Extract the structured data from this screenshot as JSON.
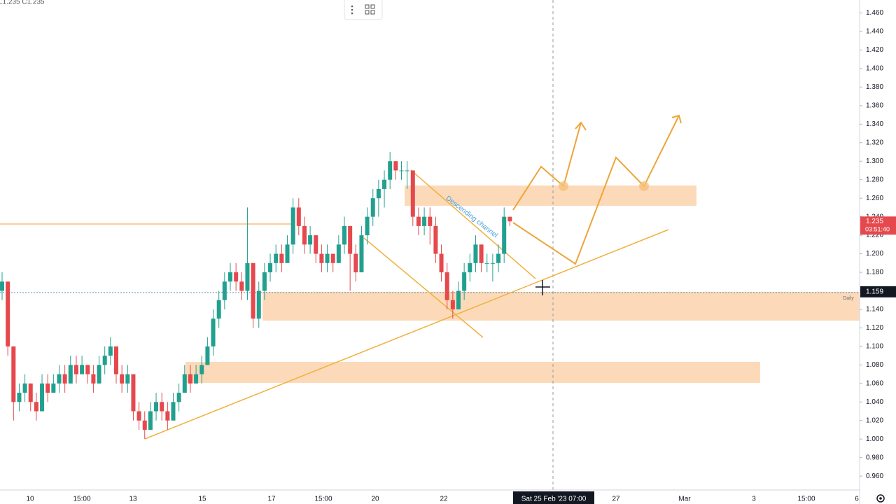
{
  "chart_data": {
    "type": "candlestick",
    "ohlc_label": "L1.235 C1.235",
    "ylim": [
      0.945,
      1.474
    ],
    "yticks": [
      {
        "value": 1.46,
        "label": "1.460"
      },
      {
        "value": 1.44,
        "label": "1.440"
      },
      {
        "value": 1.42,
        "label": "1.420"
      },
      {
        "value": 1.4,
        "label": "1.400"
      },
      {
        "value": 1.38,
        "label": "1.380"
      },
      {
        "value": 1.36,
        "label": "1.360"
      },
      {
        "value": 1.34,
        "label": "1.340"
      },
      {
        "value": 1.32,
        "label": "1.320"
      },
      {
        "value": 1.3,
        "label": "1.300"
      },
      {
        "value": 1.28,
        "label": "1.280"
      },
      {
        "value": 1.26,
        "label": "1.260"
      },
      {
        "value": 1.24,
        "label": "1.240"
      },
      {
        "value": 1.22,
        "label": "1.220"
      },
      {
        "value": 1.2,
        "label": "1.200"
      },
      {
        "value": 1.18,
        "label": "1.180"
      },
      {
        "value": 1.16,
        "label": "1.160"
      },
      {
        "value": 1.14,
        "label": "1.140"
      },
      {
        "value": 1.12,
        "label": "1.120"
      },
      {
        "value": 1.1,
        "label": "1.100"
      },
      {
        "value": 1.08,
        "label": "1.080"
      },
      {
        "value": 1.06,
        "label": "1.060"
      },
      {
        "value": 1.04,
        "label": "1.040"
      },
      {
        "value": 1.02,
        "label": "1.020"
      },
      {
        "value": 1,
        "label": "1.000"
      },
      {
        "value": 0.98,
        "label": "0.980"
      },
      {
        "value": 0.96,
        "label": "0.960"
      }
    ],
    "x_labels": [
      "10",
      "15:00",
      "13",
      "15",
      "17",
      "15:00",
      "20",
      "22",
      "27",
      "Mar",
      "3",
      "15:00",
      "6"
    ],
    "crosshair_label": "Sat 25 Feb '23  07:00",
    "last_price": {
      "value": 1.235,
      "label": "1.235",
      "countdown": "03:51:40"
    },
    "crosshair_price": {
      "value": 1.159,
      "label": "1.159"
    },
    "interval": "Daily",
    "annotation": "Descending channel",
    "up_color": "#22a08f",
    "down_color": "#e5484d",
    "candles": [
      [
        1.16,
        1.18,
        1.15,
        1.17
      ],
      [
        1.17,
        1.17,
        1.09,
        1.1
      ],
      [
        1.1,
        1.1,
        1.02,
        1.04
      ],
      [
        1.04,
        1.06,
        1.03,
        1.05
      ],
      [
        1.05,
        1.07,
        1.04,
        1.06
      ],
      [
        1.06,
        1.06,
        1.03,
        1.04
      ],
      [
        1.04,
        1.05,
        1.02,
        1.03
      ],
      [
        1.03,
        1.07,
        1.03,
        1.06
      ],
      [
        1.06,
        1.07,
        1.04,
        1.05
      ],
      [
        1.05,
        1.07,
        1.05,
        1.06
      ],
      [
        1.06,
        1.08,
        1.05,
        1.07
      ],
      [
        1.07,
        1.08,
        1.05,
        1.06
      ],
      [
        1.06,
        1.09,
        1.06,
        1.08
      ],
      [
        1.08,
        1.09,
        1.06,
        1.07
      ],
      [
        1.07,
        1.09,
        1.07,
        1.08
      ],
      [
        1.08,
        1.08,
        1.06,
        1.07
      ],
      [
        1.07,
        1.08,
        1.05,
        1.06
      ],
      [
        1.06,
        1.09,
        1.06,
        1.08
      ],
      [
        1.08,
        1.1,
        1.07,
        1.09
      ],
      [
        1.09,
        1.11,
        1.08,
        1.1
      ],
      [
        1.1,
        1.1,
        1.06,
        1.07
      ],
      [
        1.07,
        1.08,
        1.05,
        1.06
      ],
      [
        1.06,
        1.08,
        1.05,
        1.07
      ],
      [
        1.07,
        1.07,
        1.02,
        1.03
      ],
      [
        1.03,
        1.04,
        1.01,
        1.02
      ],
      [
        1.02,
        1.03,
        1.0,
        1.01
      ],
      [
        1.01,
        1.04,
        1.01,
        1.03
      ],
      [
        1.03,
        1.05,
        1.02,
        1.04
      ],
      [
        1.04,
        1.05,
        1.02,
        1.03
      ],
      [
        1.03,
        1.04,
        1.01,
        1.02
      ],
      [
        1.02,
        1.05,
        1.02,
        1.04
      ],
      [
        1.04,
        1.06,
        1.03,
        1.05
      ],
      [
        1.05,
        1.08,
        1.05,
        1.07
      ],
      [
        1.07,
        1.08,
        1.05,
        1.06
      ],
      [
        1.06,
        1.08,
        1.06,
        1.07
      ],
      [
        1.07,
        1.09,
        1.06,
        1.08
      ],
      [
        1.08,
        1.11,
        1.08,
        1.1
      ],
      [
        1.1,
        1.14,
        1.09,
        1.13
      ],
      [
        1.13,
        1.16,
        1.12,
        1.15
      ],
      [
        1.15,
        1.18,
        1.14,
        1.17
      ],
      [
        1.17,
        1.19,
        1.16,
        1.18
      ],
      [
        1.18,
        1.19,
        1.16,
        1.17
      ],
      [
        1.17,
        1.18,
        1.15,
        1.16
      ],
      [
        1.16,
        1.25,
        1.15,
        1.19
      ],
      [
        1.19,
        1.19,
        1.12,
        1.13
      ],
      [
        1.13,
        1.17,
        1.12,
        1.16
      ],
      [
        1.16,
        1.19,
        1.15,
        1.18
      ],
      [
        1.18,
        1.2,
        1.17,
        1.19
      ],
      [
        1.19,
        1.21,
        1.18,
        1.2
      ],
      [
        1.2,
        1.21,
        1.18,
        1.19
      ],
      [
        1.19,
        1.22,
        1.19,
        1.21
      ],
      [
        1.21,
        1.26,
        1.2,
        1.25
      ],
      [
        1.25,
        1.26,
        1.22,
        1.23
      ],
      [
        1.23,
        1.24,
        1.2,
        1.21
      ],
      [
        1.21,
        1.23,
        1.2,
        1.22
      ],
      [
        1.22,
        1.22,
        1.19,
        1.2
      ],
      [
        1.2,
        1.21,
        1.18,
        1.19
      ],
      [
        1.19,
        1.21,
        1.18,
        1.2
      ],
      [
        1.2,
        1.2,
        1.18,
        1.19
      ],
      [
        1.19,
        1.22,
        1.19,
        1.21
      ],
      [
        1.21,
        1.24,
        1.2,
        1.23
      ],
      [
        1.23,
        1.23,
        1.16,
        1.2
      ],
      [
        1.2,
        1.21,
        1.17,
        1.18
      ],
      [
        1.18,
        1.23,
        1.18,
        1.22
      ],
      [
        1.22,
        1.25,
        1.21,
        1.24
      ],
      [
        1.24,
        1.27,
        1.23,
        1.26
      ],
      [
        1.26,
        1.28,
        1.24,
        1.27
      ],
      [
        1.27,
        1.29,
        1.25,
        1.28
      ],
      [
        1.28,
        1.31,
        1.27,
        1.3
      ],
      [
        1.3,
        1.3,
        1.28,
        1.29
      ],
      [
        1.29,
        1.3,
        1.28,
        1.29
      ],
      [
        1.29,
        1.3,
        1.27,
        1.29
      ],
      [
        1.29,
        1.29,
        1.23,
        1.24
      ],
      [
        1.24,
        1.25,
        1.22,
        1.23
      ],
      [
        1.23,
        1.25,
        1.22,
        1.24
      ],
      [
        1.24,
        1.25,
        1.21,
        1.23
      ],
      [
        1.23,
        1.24,
        1.19,
        1.2
      ],
      [
        1.2,
        1.21,
        1.17,
        1.18
      ],
      [
        1.18,
        1.19,
        1.14,
        1.15
      ],
      [
        1.15,
        1.16,
        1.13,
        1.14
      ],
      [
        1.14,
        1.17,
        1.14,
        1.16
      ],
      [
        1.16,
        1.19,
        1.15,
        1.18
      ],
      [
        1.18,
        1.2,
        1.17,
        1.19
      ],
      [
        1.19,
        1.22,
        1.18,
        1.21
      ],
      [
        1.21,
        1.21,
        1.18,
        1.19
      ],
      [
        1.19,
        1.2,
        1.18,
        1.19
      ],
      [
        1.19,
        1.2,
        1.17,
        1.19
      ],
      [
        1.19,
        1.21,
        1.18,
        1.2
      ],
      [
        1.2,
        1.25,
        1.19,
        1.24
      ],
      [
        1.24,
        1.24,
        1.23,
        1.235
      ]
    ]
  }
}
